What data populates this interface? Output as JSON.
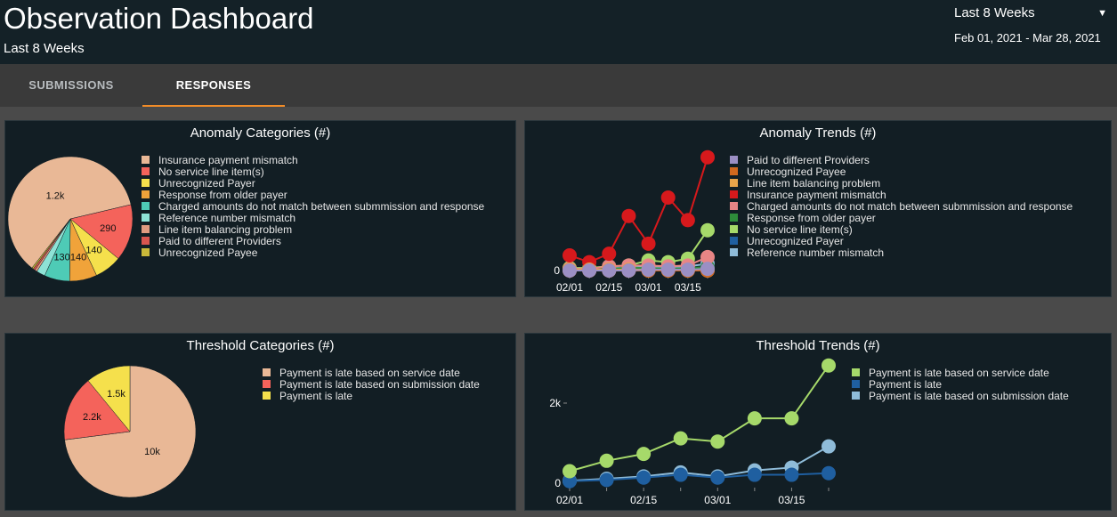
{
  "header": {
    "title": "Observation Dashboard",
    "subtitle": "Last 8 Weeks",
    "range_selected": "Last 8 Weeks",
    "date_range": "Feb 01, 2021 - Mar 28, 2021"
  },
  "tabs": [
    {
      "label": "SUBMISSIONS",
      "active": false
    },
    {
      "label": "RESPONSES",
      "active": true
    }
  ],
  "icons": {
    "dropdown": "caret-down-icon"
  },
  "colors": {
    "accent_tab": "#f28c28",
    "panel_bg": "#121e24",
    "header_bg": "#142127"
  },
  "panels": {
    "anomaly_categories": {
      "title": "Anomaly Categories (#)"
    },
    "anomaly_trends": {
      "title": "Anomaly Trends (#)"
    },
    "threshold_categories": {
      "title": "Threshold Categories (#)"
    },
    "threshold_trends": {
      "title": "Threshold Trends (#)"
    }
  },
  "chart_data": [
    {
      "id": "anomaly_categories",
      "type": "pie",
      "title": "Anomaly Categories (#)",
      "legend": "right",
      "slices": [
        {
          "label": "Insurance payment mismatch",
          "value": 1200,
          "data_label": "1.2k",
          "color": "#e9b896"
        },
        {
          "label": "No service line item(s)",
          "value": 290,
          "data_label": "290",
          "color": "#f4635b"
        },
        {
          "label": "Unrecognized Payer",
          "value": 140,
          "data_label": "140",
          "color": "#f5e04c"
        },
        {
          "label": "Response from older payer",
          "value": 140,
          "data_label": "140",
          "color": "#f0a33a"
        },
        {
          "label": "Charged amounts do not match between submmission and response",
          "value": 130,
          "data_label": "130",
          "color": "#4ecbb6"
        },
        {
          "label": "Reference number mismatch",
          "value": 45,
          "data_label": "",
          "color": "#8ee3d6"
        },
        {
          "label": "Line item balancing problem",
          "value": 12,
          "data_label": "",
          "color": "#e09a80"
        },
        {
          "label": "Paid to different Providers",
          "value": 10,
          "data_label": "",
          "color": "#d8554f"
        },
        {
          "label": "Unrecognized Payee",
          "value": 8,
          "data_label": "",
          "color": "#c9b83a"
        }
      ]
    },
    {
      "id": "anomaly_trends",
      "type": "line",
      "title": "Anomaly Trends (#)",
      "legend": "right",
      "x": [
        "02/01",
        "02/08",
        "02/15",
        "02/22",
        "03/01",
        "03/08",
        "03/15",
        "03/22"
      ],
      "x_ticks": [
        "02/01",
        "02/15",
        "03/01",
        "03/15"
      ],
      "y_ticks": [
        "0"
      ],
      "ylim": [
        0,
        140
      ],
      "series": [
        {
          "name": "Paid to different Providers",
          "color": "#9b8fc4",
          "values": [
            0,
            0,
            0,
            0,
            1,
            1,
            1,
            2
          ]
        },
        {
          "name": "Unrecognized Payee",
          "color": "#d2691e",
          "values": [
            0,
            0,
            0,
            0,
            0,
            0,
            0,
            0
          ]
        },
        {
          "name": "Line item balancing problem",
          "color": "#e8a44a",
          "values": [
            1,
            1,
            1,
            1,
            1,
            1,
            1,
            1
          ]
        },
        {
          "name": "Insurance payment mismatch",
          "color": "#d7191c",
          "values": [
            18,
            10,
            20,
            65,
            32,
            87,
            60,
            135
          ]
        },
        {
          "name": "Charged amounts do not match between submmission and response",
          "color": "#e88585",
          "values": [
            2,
            2,
            5,
            6,
            6,
            5,
            6,
            16
          ]
        },
        {
          "name": "Response from older payer",
          "color": "#2e8b3a",
          "values": [
            1,
            2,
            2,
            3,
            3,
            2,
            3,
            4
          ]
        },
        {
          "name": "No service line item(s)",
          "color": "#a6d96a",
          "values": [
            3,
            3,
            5,
            6,
            12,
            10,
            14,
            48
          ]
        },
        {
          "name": "Unrecognized Payer",
          "color": "#1f5fa0",
          "values": [
            1,
            1,
            2,
            2,
            3,
            2,
            3,
            4
          ]
        },
        {
          "name": "Reference number mismatch",
          "color": "#8fbcd9",
          "values": [
            2,
            2,
            3,
            3,
            5,
            4,
            5,
            8
          ]
        }
      ],
      "extra_series": [
        {
          "color": "#fdae61",
          "values": [
            0,
            0,
            0,
            0,
            0,
            0,
            0,
            0
          ]
        }
      ]
    },
    {
      "id": "threshold_categories",
      "type": "pie",
      "title": "Threshold Categories (#)",
      "legend": "right",
      "slices": [
        {
          "label": "Payment is late based on service date",
          "value": 10000,
          "data_label": "10k",
          "color": "#e9b896"
        },
        {
          "label": "Payment is late based on submission date",
          "value": 2200,
          "data_label": "2.2k",
          "color": "#f4635b"
        },
        {
          "label": "Payment is late",
          "value": 1500,
          "data_label": "1.5k",
          "color": "#f5e04c"
        }
      ]
    },
    {
      "id": "threshold_trends",
      "type": "line",
      "title": "Threshold Trends (#)",
      "legend": "top-right",
      "x": [
        "02/01",
        "02/08",
        "02/15",
        "02/22",
        "03/01",
        "03/08",
        "03/15",
        "03/22"
      ],
      "x_ticks": [
        "02/01",
        "02/15",
        "03/01",
        "03/15"
      ],
      "y_ticks": [
        {
          "value": 0,
          "label": "0"
        },
        {
          "value": 2000,
          "label": "2k"
        }
      ],
      "ylim": [
        0,
        3400
      ],
      "series": [
        {
          "name": "Payment is late based on service date",
          "color": "#a6d96a",
          "values": [
            300,
            560,
            730,
            1120,
            1040,
            1620,
            1620,
            2940
          ]
        },
        {
          "name": "Payment is late",
          "color": "#1f5fa0",
          "values": [
            50,
            80,
            140,
            210,
            140,
            210,
            210,
            250
          ]
        },
        {
          "name": "Payment is late based on submission date",
          "color": "#8fbcd9",
          "values": [
            60,
            110,
            170,
            270,
            170,
            320,
            390,
            920
          ]
        }
      ]
    }
  ]
}
